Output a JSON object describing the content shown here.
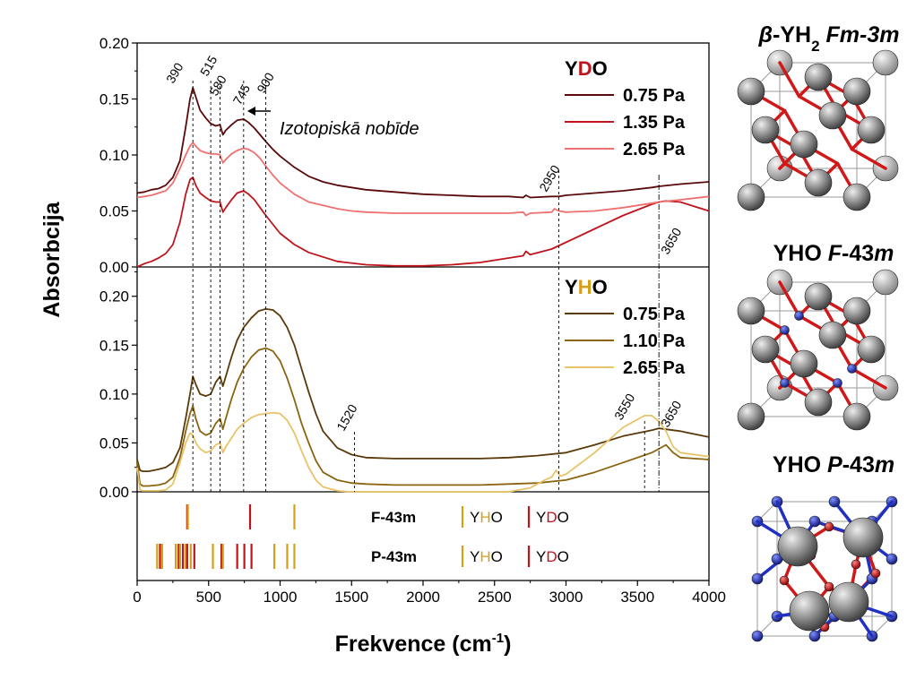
{
  "chart_data": [
    {
      "type": "line",
      "panel": "top",
      "legend_title": {
        "parts": [
          {
            "text": "Y",
            "color": "#000000"
          },
          {
            "text": "D",
            "color": "#c0141c"
          },
          {
            "text": "O",
            "color": "#000000"
          }
        ]
      },
      "ylim": [
        0,
        0.2
      ],
      "xlim": [
        0,
        4000
      ],
      "yticks": [
        "0.00",
        "0.05",
        "0.10",
        "0.15",
        "0.20"
      ],
      "annotations": [
        "390",
        "515",
        "580",
        "745",
        "900",
        "2950",
        "3650"
      ],
      "note": "Izotopiskā nobīde",
      "series": [
        {
          "name": "0.75 Pa",
          "color": "#5a0a0a",
          "x": [
            0,
            50,
            100,
            150,
            200,
            250,
            300,
            340,
            370,
            390,
            410,
            440,
            480,
            515,
            550,
            580,
            600,
            620,
            660,
            700,
            745,
            780,
            820,
            860,
            900,
            950,
            1000,
            1100,
            1200,
            1300,
            1400,
            1500,
            1600,
            1800,
            2000,
            2200,
            2400,
            2600,
            2700,
            2720,
            2750,
            2900,
            2950,
            3000,
            3200,
            3400,
            3600,
            3650,
            3800,
            4000
          ],
          "y": [
            0.066,
            0.067,
            0.069,
            0.07,
            0.073,
            0.08,
            0.095,
            0.125,
            0.15,
            0.16,
            0.152,
            0.14,
            0.133,
            0.128,
            0.126,
            0.127,
            0.118,
            0.122,
            0.127,
            0.131,
            0.132,
            0.129,
            0.124,
            0.118,
            0.112,
            0.105,
            0.099,
            0.089,
            0.081,
            0.076,
            0.073,
            0.071,
            0.069,
            0.067,
            0.065,
            0.064,
            0.063,
            0.063,
            0.062,
            0.064,
            0.062,
            0.063,
            0.063,
            0.064,
            0.066,
            0.068,
            0.071,
            0.072,
            0.074,
            0.076
          ]
        },
        {
          "name": "1.35 Pa",
          "color": "#c0141c",
          "x": [
            0,
            50,
            100,
            150,
            200,
            250,
            300,
            340,
            370,
            390,
            410,
            440,
            480,
            515,
            550,
            580,
            600,
            620,
            660,
            700,
            745,
            780,
            820,
            860,
            900,
            950,
            1000,
            1100,
            1200,
            1400,
            1600,
            1800,
            2000,
            2200,
            2400,
            2600,
            2700,
            2720,
            2750,
            2900,
            3000,
            3200,
            3400,
            3600,
            3650,
            3700,
            3800,
            3900,
            4000
          ],
          "y": [
            0.0,
            0.003,
            0.005,
            0.008,
            0.012,
            0.02,
            0.04,
            0.065,
            0.078,
            0.08,
            0.073,
            0.066,
            0.062,
            0.059,
            0.058,
            0.058,
            0.049,
            0.053,
            0.06,
            0.066,
            0.068,
            0.065,
            0.06,
            0.053,
            0.046,
            0.038,
            0.03,
            0.02,
            0.013,
            0.005,
            0.002,
            0.001,
            0.001,
            0.002,
            0.004,
            0.008,
            0.01,
            0.014,
            0.011,
            0.016,
            0.022,
            0.034,
            0.046,
            0.056,
            0.058,
            0.059,
            0.058,
            0.054,
            0.05
          ]
        },
        {
          "name": "2.65 Pa",
          "color": "#f07070",
          "x": [
            0,
            50,
            100,
            150,
            200,
            250,
            300,
            340,
            370,
            390,
            410,
            440,
            480,
            515,
            550,
            580,
            600,
            620,
            660,
            700,
            745,
            780,
            820,
            860,
            900,
            950,
            1000,
            1100,
            1200,
            1300,
            1400,
            1500,
            1600,
            1800,
            2000,
            2200,
            2400,
            2600,
            2700,
            2720,
            2750,
            2900,
            2920,
            2950,
            3000,
            3200,
            3400,
            3600,
            3650,
            3800,
            4000
          ],
          "y": [
            0.062,
            0.063,
            0.064,
            0.066,
            0.068,
            0.075,
            0.088,
            0.1,
            0.108,
            0.111,
            0.108,
            0.104,
            0.102,
            0.101,
            0.101,
            0.1,
            0.093,
            0.096,
            0.101,
            0.104,
            0.106,
            0.105,
            0.102,
            0.097,
            0.09,
            0.082,
            0.075,
            0.065,
            0.058,
            0.055,
            0.052,
            0.05,
            0.049,
            0.048,
            0.048,
            0.048,
            0.048,
            0.048,
            0.049,
            0.046,
            0.048,
            0.049,
            0.052,
            0.05,
            0.049,
            0.05,
            0.053,
            0.057,
            0.058,
            0.06,
            0.063
          ]
        }
      ]
    },
    {
      "type": "line",
      "panel": "bottom",
      "legend_title": {
        "parts": [
          {
            "text": "Y",
            "color": "#000000"
          },
          {
            "text": "H",
            "color": "#d4a017"
          },
          {
            "text": "O",
            "color": "#000000"
          }
        ]
      },
      "ylim": [
        0,
        0.23
      ],
      "xlim": [
        0,
        4000
      ],
      "yticks": [
        "0.00",
        "0.05",
        "0.10",
        "0.15",
        "0.20"
      ],
      "annotations": [
        "1520",
        "3550",
        "3650"
      ],
      "series": [
        {
          "name": "0.75 Pa",
          "color": "#5a3a0a",
          "x": [
            0,
            20,
            40,
            80,
            150,
            200,
            250,
            300,
            340,
            370,
            390,
            410,
            440,
            480,
            515,
            550,
            580,
            600,
            620,
            660,
            700,
            745,
            800,
            850,
            900,
            950,
            1000,
            1050,
            1100,
            1150,
            1200,
            1250,
            1300,
            1400,
            1500,
            1600,
            1800,
            2000,
            2200,
            2400,
            2600,
            2800,
            3000,
            3200,
            3400,
            3600,
            3650,
            3700,
            3800,
            4000
          ],
          "y": [
            0.033,
            0.022,
            0.021,
            0.021,
            0.023,
            0.025,
            0.03,
            0.045,
            0.075,
            0.1,
            0.118,
            0.11,
            0.1,
            0.098,
            0.1,
            0.112,
            0.118,
            0.108,
            0.118,
            0.138,
            0.155,
            0.168,
            0.178,
            0.185,
            0.187,
            0.186,
            0.18,
            0.168,
            0.15,
            0.126,
            0.102,
            0.08,
            0.062,
            0.045,
            0.038,
            0.035,
            0.034,
            0.034,
            0.034,
            0.034,
            0.035,
            0.037,
            0.04,
            0.048,
            0.057,
            0.063,
            0.065,
            0.064,
            0.062,
            0.056
          ]
        },
        {
          "name": "1.10 Pa",
          "color": "#8a6410",
          "x": [
            0,
            20,
            40,
            80,
            150,
            200,
            250,
            300,
            340,
            370,
            390,
            410,
            440,
            480,
            515,
            550,
            580,
            600,
            620,
            660,
            700,
            745,
            800,
            850,
            900,
            950,
            1000,
            1050,
            1100,
            1150,
            1200,
            1250,
            1300,
            1400,
            1500,
            1600,
            1800,
            2000,
            2200,
            2400,
            2600,
            2800,
            3000,
            3200,
            3400,
            3600,
            3650,
            3700,
            3750,
            3800,
            4000
          ],
          "y": [
            0.03,
            0.008,
            0.006,
            0.006,
            0.007,
            0.009,
            0.015,
            0.035,
            0.062,
            0.08,
            0.088,
            0.075,
            0.062,
            0.058,
            0.06,
            0.07,
            0.075,
            0.064,
            0.075,
            0.095,
            0.112,
            0.126,
            0.138,
            0.145,
            0.147,
            0.144,
            0.134,
            0.116,
            0.094,
            0.07,
            0.05,
            0.032,
            0.02,
            0.012,
            0.009,
            0.008,
            0.007,
            0.007,
            0.007,
            0.007,
            0.008,
            0.009,
            0.012,
            0.02,
            0.03,
            0.04,
            0.044,
            0.048,
            0.04,
            0.035,
            0.033
          ]
        },
        {
          "name": "2.65 Pa",
          "color": "#e8c468",
          "x": [
            0,
            20,
            40,
            80,
            150,
            200,
            250,
            300,
            340,
            370,
            390,
            410,
            440,
            480,
            515,
            550,
            580,
            600,
            620,
            660,
            700,
            745,
            800,
            850,
            900,
            950,
            1000,
            1050,
            1100,
            1150,
            1200,
            1250,
            1300,
            1400,
            1500,
            1600,
            1800,
            2000,
            2200,
            2400,
            2600,
            2750,
            2850,
            2900,
            2930,
            2960,
            3000,
            3200,
            3400,
            3550,
            3600,
            3650,
            3700,
            3750,
            3800,
            4000
          ],
          "y": [
            0.025,
            0.002,
            0.001,
            0.001,
            0.001,
            0.002,
            0.008,
            0.03,
            0.05,
            0.06,
            0.058,
            0.05,
            0.044,
            0.04,
            0.042,
            0.048,
            0.05,
            0.04,
            0.046,
            0.055,
            0.064,
            0.07,
            0.076,
            0.079,
            0.08,
            0.081,
            0.08,
            0.073,
            0.06,
            0.042,
            0.025,
            0.012,
            0.005,
            0.001,
            0.0,
            0.0,
            0.0,
            0.0,
            0.0,
            0.0,
            0.0,
            0.004,
            0.012,
            0.015,
            0.022,
            0.016,
            0.018,
            0.04,
            0.066,
            0.078,
            0.078,
            0.072,
            0.062,
            0.046,
            0.04,
            0.036
          ]
        }
      ]
    },
    {
      "type": "stick",
      "panel": "calc",
      "rows": [
        {
          "label": "F-43m",
          "sticks": [
            {
              "x": 350,
              "color": "#c0141c"
            },
            {
              "x": 355,
              "color": "#d4a017"
            },
            {
              "x": 790,
              "color": "#c0141c"
            },
            {
              "x": 1100,
              "color": "#d4a017"
            }
          ],
          "legend": [
            {
              "swatch": "#d4a017",
              "parts": [
                {
                  "text": "Y",
                  "color": "#000000"
                },
                {
                  "text": "H",
                  "color": "#d4a017"
                },
                {
                  "text": "O",
                  "color": "#000000"
                }
              ]
            },
            {
              "swatch": "#c0141c",
              "parts": [
                {
                  "text": "Y",
                  "color": "#000000"
                },
                {
                  "text": "D",
                  "color": "#c0141c"
                },
                {
                  "text": "O",
                  "color": "#000000"
                }
              ]
            }
          ]
        },
        {
          "label": "P-43m",
          "sticks": [
            {
              "x": 140,
              "color": "#d4a017"
            },
            {
              "x": 160,
              "color": "#c0141c"
            },
            {
              "x": 175,
              "color": "#d4a017"
            },
            {
              "x": 270,
              "color": "#d4a017"
            },
            {
              "x": 290,
              "color": "#c0141c"
            },
            {
              "x": 300,
              "color": "#d4a017"
            },
            {
              "x": 320,
              "color": "#c0141c"
            },
            {
              "x": 340,
              "color": "#d4a017"
            },
            {
              "x": 350,
              "color": "#c0141c"
            },
            {
              "x": 375,
              "color": "#d4a017"
            },
            {
              "x": 400,
              "color": "#c0141c"
            },
            {
              "x": 530,
              "color": "#d4a017"
            },
            {
              "x": 590,
              "color": "#c0141c"
            },
            {
              "x": 600,
              "color": "#d4a017"
            },
            {
              "x": 700,
              "color": "#c0141c"
            },
            {
              "x": 750,
              "color": "#c0141c"
            },
            {
              "x": 800,
              "color": "#c0141c"
            },
            {
              "x": 960,
              "color": "#d4a017"
            },
            {
              "x": 1050,
              "color": "#d4a017"
            },
            {
              "x": 1100,
              "color": "#d4a017"
            }
          ],
          "legend": [
            {
              "swatch": "#d4a017",
              "parts": [
                {
                  "text": "Y",
                  "color": "#000000"
                },
                {
                  "text": "H",
                  "color": "#d4a017"
                },
                {
                  "text": "O",
                  "color": "#000000"
                }
              ]
            },
            {
              "swatch": "#c0141c",
              "parts": [
                {
                  "text": "Y",
                  "color": "#000000"
                },
                {
                  "text": "D",
                  "color": "#c0141c"
                },
                {
                  "text": "O",
                  "color": "#000000"
                }
              ]
            }
          ]
        }
      ]
    }
  ],
  "axes": {
    "xlabel": "Frekvence (cm",
    "xlabel_sup": "-1",
    "xlabel_close": ")",
    "ylabel": "Absorbcija",
    "xticks": [
      "0",
      "500",
      "1000",
      "1500",
      "2000",
      "2500",
      "3000",
      "3500",
      "4000"
    ]
  },
  "structures": [
    {
      "title_parts": [
        {
          "text": "β",
          "italic": true
        },
        {
          "text": "-YH",
          "italic": false
        },
        {
          "text": "2",
          "sub": true
        },
        {
          "text": " Fm-3m",
          "italic": true
        }
      ]
    },
    {
      "title_parts": [
        {
          "text": "YHO ",
          "italic": false
        },
        {
          "text": "F",
          "italic": true
        },
        {
          "text": "-43",
          "italic": false
        },
        {
          "text": "m",
          "italic": true
        }
      ]
    },
    {
      "title_parts": [
        {
          "text": "YHO ",
          "italic": false
        },
        {
          "text": "P",
          "italic": true
        },
        {
          "text": "-43",
          "italic": false
        },
        {
          "text": "m",
          "italic": true
        }
      ]
    }
  ],
  "colors": {
    "Y_atom": "#777777",
    "D_bond": "#d01818",
    "H_atom": "#2030c0",
    "O_atom": "#d01818"
  }
}
